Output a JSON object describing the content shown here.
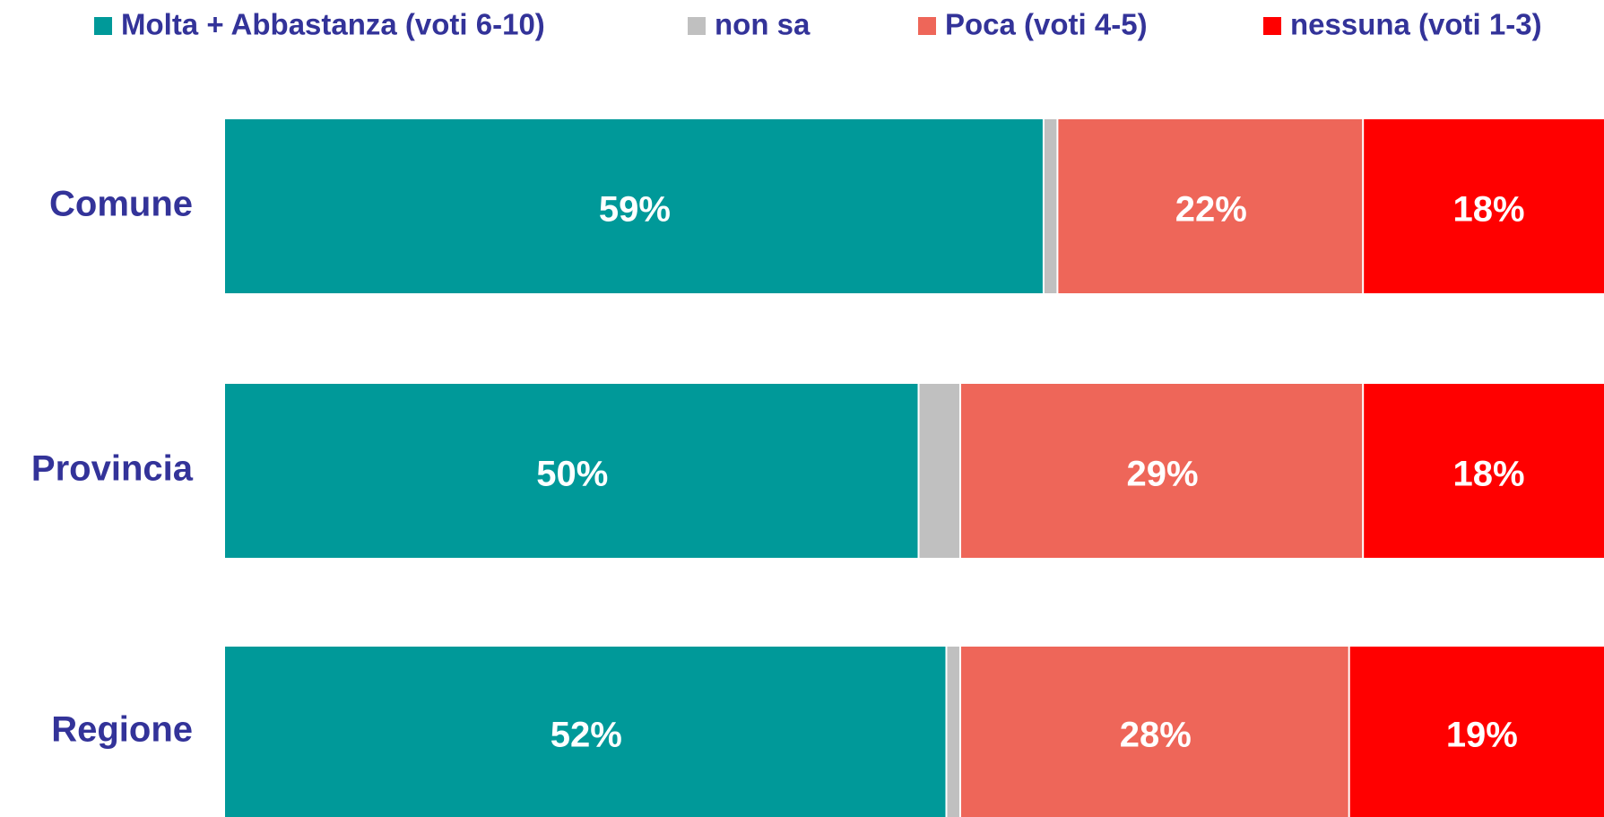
{
  "chart_data": {
    "type": "stacked-bar-horizontal",
    "categories": [
      "Comune",
      "Provincia",
      "Regione"
    ],
    "xlim": [
      0,
      100
    ],
    "legend": "top",
    "series": [
      {
        "name": "Molta + Abbastanza (voti 6-10)",
        "color": "#009999",
        "values": [
          59,
          50,
          52
        ],
        "value_labels": [
          "59%",
          "50%",
          "52%"
        ]
      },
      {
        "name": "non sa",
        "color": "#c0c0c0",
        "values": [
          1,
          3,
          1
        ]
      },
      {
        "name": "Poca (voti 4-5)",
        "color": "#ee6659",
        "values": [
          22,
          29,
          28
        ],
        "value_labels": [
          "22%",
          "29%",
          "28%"
        ]
      },
      {
        "name": "nessuna (voti 1-3)",
        "color": "#ff0000",
        "values": [
          18,
          18,
          19
        ],
        "value_labels": [
          "18%",
          "18%",
          "19%"
        ]
      }
    ]
  }
}
